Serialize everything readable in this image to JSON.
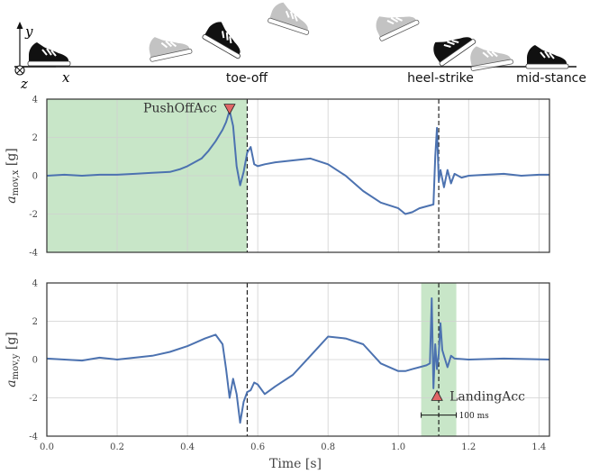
{
  "illustration": {
    "phase_labels": [
      "toe-off",
      "heel-strike",
      "mid-stance"
    ],
    "axis_labels": {
      "y": "y",
      "x": "x",
      "z": "z"
    },
    "shoe_icon": "sneaker-icon"
  },
  "colors": {
    "signal": "#4c72b0",
    "stance_shade": "#c8e6c8",
    "marker_fill": "#e06666",
    "grid": "#d0d0d0"
  },
  "chart_data": [
    {
      "type": "line",
      "ylabel_main": "a",
      "ylabel_sub": "mov,x",
      "ylabel_unit": "[g]",
      "xlim": [
        0.0,
        1.43
      ],
      "ylim": [
        -4,
        4
      ],
      "xticks": [
        0.0,
        0.2,
        0.4,
        0.6,
        0.8,
        1.0,
        1.2,
        1.4
      ],
      "yticks": [
        -4,
        -2,
        0,
        2,
        4
      ],
      "grid": true,
      "shaded_span": [
        0.0,
        0.57
      ],
      "vlines": [
        0.57,
        1.115
      ],
      "annotation": {
        "label": "PushOffAcc",
        "x": 0.52,
        "y": 3.5,
        "marker": "down-triangle"
      },
      "series": [
        {
          "x": [
            0.0,
            0.05,
            0.1,
            0.15,
            0.2,
            0.25,
            0.3,
            0.35,
            0.38,
            0.4,
            0.42,
            0.44,
            0.46,
            0.48,
            0.5,
            0.51,
            0.52,
            0.53,
            0.54,
            0.55,
            0.56,
            0.57,
            0.58,
            0.59,
            0.6,
            0.62,
            0.65,
            0.7,
            0.75,
            0.8,
            0.85,
            0.9,
            0.95,
            1.0,
            1.02,
            1.04,
            1.06,
            1.08,
            1.1,
            1.105,
            1.11,
            1.115,
            1.12,
            1.13,
            1.14,
            1.15,
            1.16,
            1.18,
            1.2,
            1.25,
            1.3,
            1.35,
            1.4,
            1.43
          ],
          "values": [
            0.0,
            0.05,
            0.0,
            0.05,
            0.05,
            0.1,
            0.15,
            0.2,
            0.35,
            0.5,
            0.7,
            0.9,
            1.3,
            1.8,
            2.4,
            2.8,
            3.4,
            2.6,
            0.5,
            -0.5,
            0.2,
            1.2,
            1.5,
            0.6,
            0.5,
            0.6,
            0.7,
            0.8,
            0.9,
            0.6,
            0.0,
            -0.8,
            -1.4,
            -1.7,
            -2.0,
            -1.9,
            -1.7,
            -1.6,
            -1.5,
            1.0,
            2.5,
            -0.3,
            0.3,
            -0.6,
            0.3,
            -0.4,
            0.1,
            -0.1,
            0.0,
            0.05,
            0.1,
            0.0,
            0.05,
            0.05
          ]
        }
      ]
    },
    {
      "type": "line",
      "ylabel_main": "a",
      "ylabel_sub": "mov,y",
      "ylabel_unit": "[g]",
      "xlabel": "Time [s]",
      "xlim": [
        0.0,
        1.43
      ],
      "ylim": [
        -4,
        4
      ],
      "xticks": [
        0.0,
        0.2,
        0.4,
        0.6,
        0.8,
        1.0,
        1.2,
        1.4
      ],
      "xticklabels": [
        "0.0",
        "0.2",
        "0.4",
        "0.6",
        "0.8",
        "1.0",
        "1.2",
        "1.4"
      ],
      "yticks": [
        -4,
        -2,
        0,
        2,
        4
      ],
      "grid": true,
      "shaded_span": [
        1.065,
        1.165
      ],
      "vlines": [
        0.57,
        1.115
      ],
      "annotation": {
        "label": "LandingAcc",
        "x": 1.11,
        "y": -1.9,
        "marker": "up-triangle"
      },
      "scalebar": {
        "label": "100 ms",
        "x_start": 1.065,
        "x_end": 1.165,
        "y": -2.9
      },
      "series": [
        {
          "x": [
            0.0,
            0.05,
            0.1,
            0.15,
            0.2,
            0.25,
            0.3,
            0.35,
            0.4,
            0.45,
            0.48,
            0.5,
            0.51,
            0.52,
            0.53,
            0.54,
            0.55,
            0.56,
            0.57,
            0.58,
            0.59,
            0.6,
            0.62,
            0.65,
            0.7,
            0.75,
            0.8,
            0.85,
            0.9,
            0.95,
            1.0,
            1.02,
            1.04,
            1.06,
            1.08,
            1.09,
            1.095,
            1.1,
            1.105,
            1.11,
            1.115,
            1.12,
            1.125,
            1.13,
            1.14,
            1.15,
            1.16,
            1.2,
            1.3,
            1.43
          ],
          "values": [
            0.05,
            0.0,
            -0.05,
            0.1,
            0.0,
            0.1,
            0.2,
            0.4,
            0.7,
            1.1,
            1.3,
            0.8,
            -0.5,
            -2.0,
            -1.0,
            -1.8,
            -3.3,
            -2.2,
            -1.7,
            -1.6,
            -1.2,
            -1.3,
            -1.8,
            -1.4,
            -0.8,
            0.2,
            1.2,
            1.1,
            0.8,
            -0.2,
            -0.6,
            -0.6,
            -0.5,
            -0.4,
            -0.3,
            -0.2,
            3.2,
            -1.5,
            0.8,
            -0.5,
            0.3,
            1.9,
            0.5,
            0.2,
            -0.4,
            0.2,
            0.05,
            0.0,
            0.05,
            0.0
          ]
        }
      ]
    }
  ]
}
